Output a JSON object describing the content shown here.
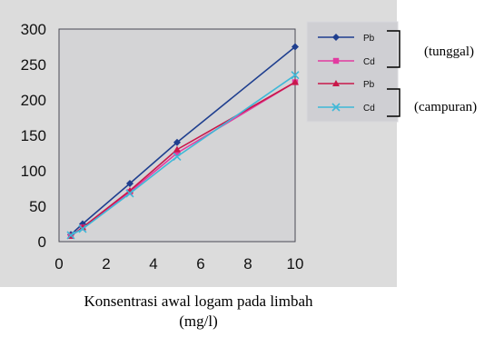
{
  "chart_data": {
    "type": "line",
    "x": [
      0.5,
      1,
      3,
      5,
      10
    ],
    "series": [
      {
        "name": "Pb",
        "group": "tunggal",
        "color": "#1f3f8f",
        "marker": "diamond",
        "values": [
          10,
          25,
          82,
          140,
          275
        ]
      },
      {
        "name": "Cd",
        "group": "tunggal",
        "color": "#e23aa0",
        "marker": "square",
        "values": [
          8,
          20,
          70,
          125,
          225
        ]
      },
      {
        "name": "Pb",
        "group": "campuran",
        "color": "#c9184a",
        "marker": "triangle",
        "values": [
          8,
          20,
          72,
          130,
          225
        ]
      },
      {
        "name": "Cd",
        "group": "campuran",
        "color": "#3fb8d8",
        "marker": "x",
        "values": [
          9,
          18,
          68,
          120,
          235
        ]
      }
    ],
    "xlim": [
      0,
      10
    ],
    "ylim": [
      0,
      300
    ],
    "xticks": [
      0,
      2,
      4,
      6,
      8,
      10
    ],
    "yticks": [
      0,
      50,
      100,
      150,
      200,
      250,
      300
    ],
    "xlabel_lines": [
      "Konsentrasi awal logam pada limbah",
      "(mg/l)"
    ],
    "annotations": [
      "(tunggal)",
      "(campuran)"
    ],
    "legend_position": "right",
    "grid": false
  }
}
